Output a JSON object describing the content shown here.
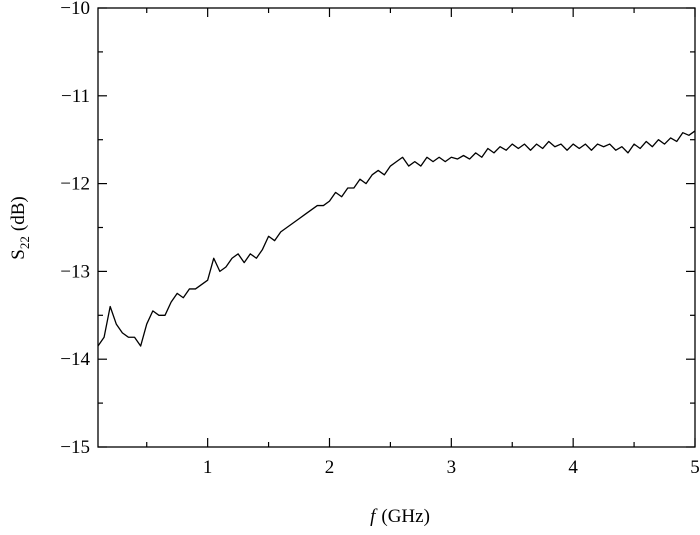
{
  "chart_data": {
    "type": "line",
    "x_label": {
      "symbol": "f",
      "unit": "(GHz)"
    },
    "y_label": {
      "symbol": "S",
      "subscript": "22",
      "unit": "(dB)"
    },
    "color": "#000000",
    "x": [
      0.1,
      0.15,
      0.2,
      0.25,
      0.3,
      0.35,
      0.4,
      0.45,
      0.5,
      0.55,
      0.6,
      0.65,
      0.7,
      0.75,
      0.8,
      0.85,
      0.9,
      0.95,
      1.0,
      1.05,
      1.1,
      1.15,
      1.2,
      1.25,
      1.3,
      1.35,
      1.4,
      1.45,
      1.5,
      1.55,
      1.6,
      1.65,
      1.7,
      1.75,
      1.8,
      1.85,
      1.9,
      1.95,
      2.0,
      2.05,
      2.1,
      2.15,
      2.2,
      2.25,
      2.3,
      2.35,
      2.4,
      2.45,
      2.5,
      2.55,
      2.6,
      2.65,
      2.7,
      2.75,
      2.8,
      2.85,
      2.9,
      2.95,
      3.0,
      3.05,
      3.1,
      3.15,
      3.2,
      3.25,
      3.3,
      3.35,
      3.4,
      3.45,
      3.5,
      3.55,
      3.6,
      3.65,
      3.7,
      3.75,
      3.8,
      3.85,
      3.9,
      3.95,
      4.0,
      4.05,
      4.1,
      4.15,
      4.2,
      4.25,
      4.3,
      4.35,
      4.4,
      4.45,
      4.5,
      4.55,
      4.6,
      4.65,
      4.7,
      4.75,
      4.8,
      4.85,
      4.9,
      4.95,
      5.0
    ],
    "values": [
      -13.85,
      -13.75,
      -13.4,
      -13.6,
      -13.7,
      -13.75,
      -13.75,
      -13.85,
      -13.6,
      -13.45,
      -13.5,
      -13.5,
      -13.35,
      -13.25,
      -13.3,
      -13.2,
      -13.2,
      -13.15,
      -13.1,
      -12.85,
      -13.0,
      -12.95,
      -12.85,
      -12.8,
      -12.9,
      -12.8,
      -12.85,
      -12.75,
      -12.6,
      -12.65,
      -12.55,
      -12.5,
      -12.45,
      -12.4,
      -12.35,
      -12.3,
      -12.25,
      -12.25,
      -12.2,
      -12.1,
      -12.15,
      -12.05,
      -12.05,
      -11.95,
      -12.0,
      -11.9,
      -11.85,
      -11.9,
      -11.8,
      -11.75,
      -11.7,
      -11.8,
      -11.75,
      -11.8,
      -11.7,
      -11.75,
      -11.7,
      -11.75,
      -11.7,
      -11.72,
      -11.68,
      -11.72,
      -11.65,
      -11.7,
      -11.6,
      -11.65,
      -11.58,
      -11.62,
      -11.55,
      -11.6,
      -11.55,
      -11.62,
      -11.55,
      -11.6,
      -11.52,
      -11.58,
      -11.55,
      -11.62,
      -11.55,
      -11.6,
      -11.55,
      -11.62,
      -11.55,
      -11.58,
      -11.55,
      -11.62,
      -11.58,
      -11.65,
      -11.55,
      -11.6,
      -11.52,
      -11.58,
      -11.5,
      -11.55,
      -11.48,
      -11.52,
      -11.42,
      -11.45,
      -11.4
    ],
    "xlim": [
      0.1,
      5
    ],
    "ylim": [
      -15,
      -10
    ],
    "xticks": [
      1,
      2,
      3,
      4,
      5
    ],
    "yticks": [
      {
        "value": -10,
        "label": "−10"
      },
      {
        "value": -11,
        "label": "−11"
      },
      {
        "value": -12,
        "label": "−12"
      },
      {
        "value": -13,
        "label": "−13"
      },
      {
        "value": -14,
        "label": "−14"
      },
      {
        "value": -15,
        "label": "−15"
      }
    ],
    "xminorticks": [
      0.5,
      1.5,
      2.5,
      3.5,
      4.5
    ],
    "yminorticks": [
      -10.5,
      -11.5,
      -12.5,
      -13.5,
      -14.5
    ]
  }
}
